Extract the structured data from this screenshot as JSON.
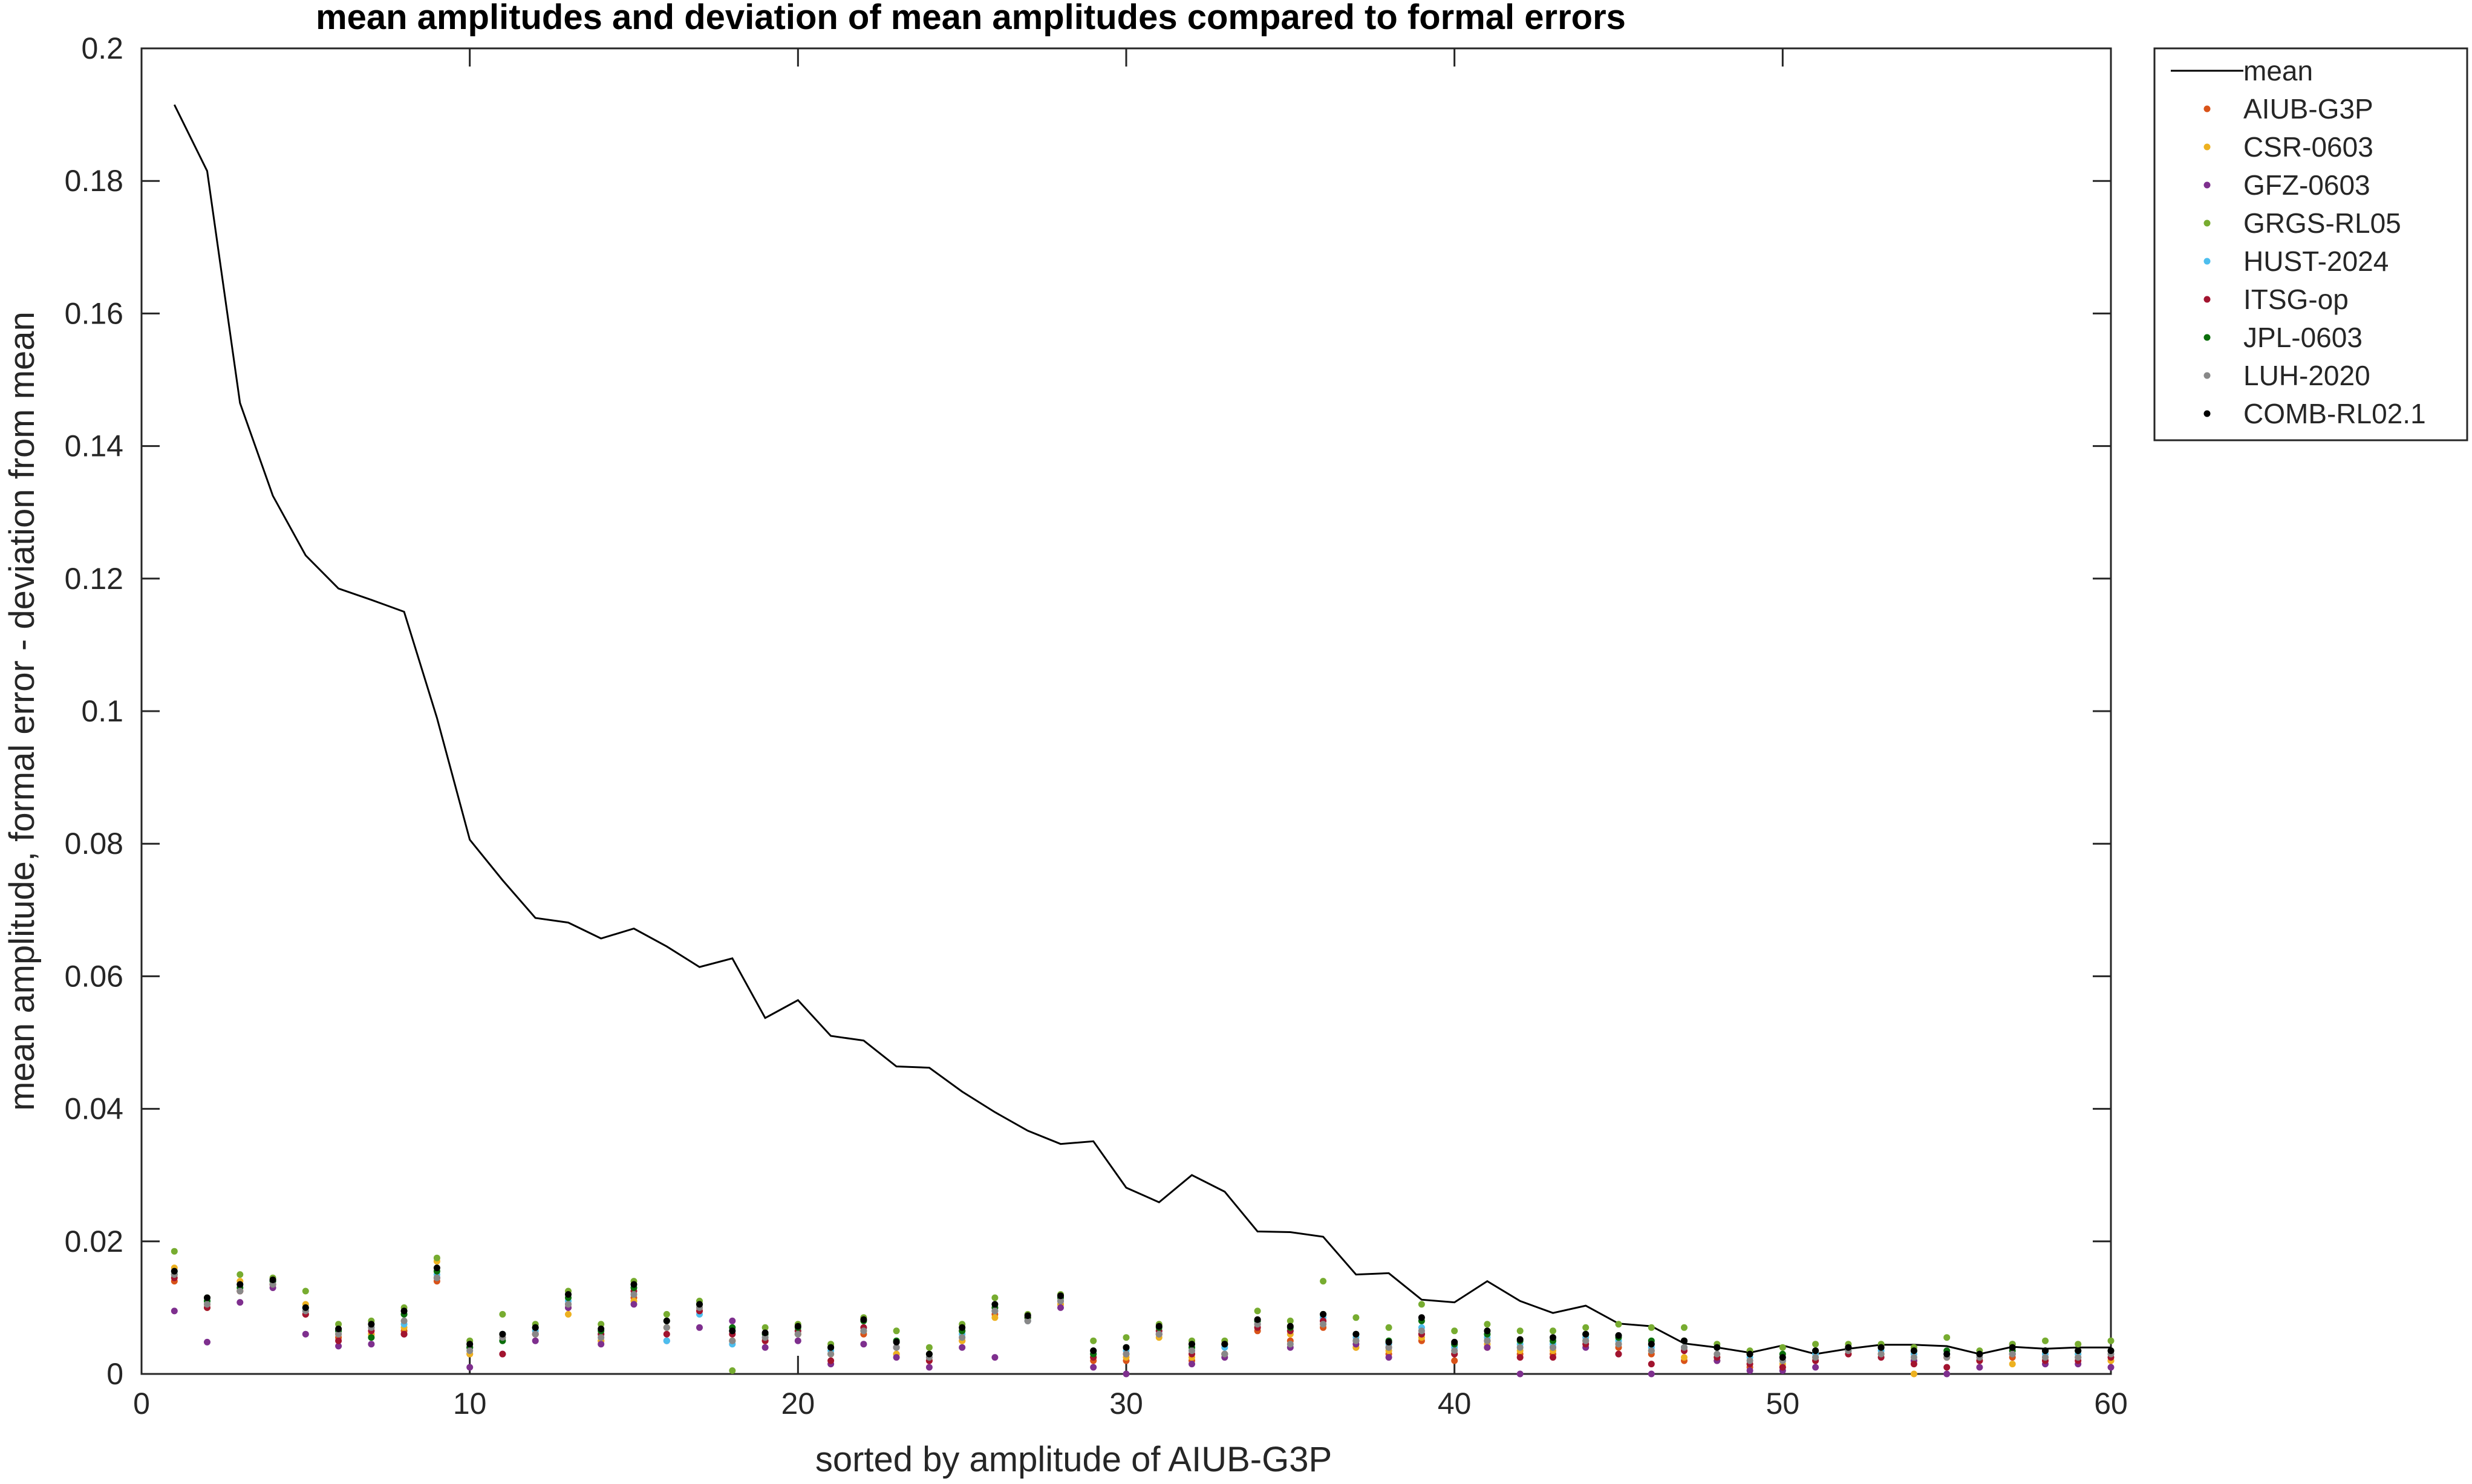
{
  "chart_data": {
    "type": "scatter",
    "title": "mean amplitudes and deviation of mean amplitudes compared to formal errors",
    "xlabel": "sorted by amplitude of AIUB-G3P",
    "ylabel": "mean amplitude, formal error - deviation from mean",
    "xlim": [
      0,
      60
    ],
    "ylim": [
      0,
      0.2
    ],
    "xticks": [
      "0",
      "10",
      "20",
      "30",
      "40",
      "50",
      "60"
    ],
    "yticks": [
      "0",
      "0.02",
      "0.04",
      "0.06",
      "0.08",
      "0.1",
      "0.12",
      "0.14",
      "0.16",
      "0.18",
      "0.2"
    ],
    "grid": false,
    "legend_position": "outside-right-top",
    "x": [
      1,
      2,
      3,
      4,
      5,
      6,
      7,
      8,
      9,
      10,
      11,
      12,
      13,
      14,
      15,
      16,
      17,
      18,
      19,
      20,
      21,
      22,
      23,
      24,
      25,
      26,
      27,
      28,
      29,
      30,
      31,
      32,
      33,
      34,
      35,
      36,
      37,
      38,
      39,
      40,
      41,
      42,
      43,
      44,
      45,
      46,
      47,
      48,
      49,
      50,
      51,
      52,
      53,
      54,
      55,
      56,
      57,
      58,
      59,
      60
    ],
    "mean": {
      "name": "mean",
      "color": "#000000",
      "style": "line",
      "values": [
        0.1915,
        0.1815,
        0.1465,
        0.1325,
        0.1235,
        0.1185,
        0.1168,
        0.115,
        0.099,
        0.0806,
        0.0745,
        0.0688,
        0.0681,
        0.0657,
        0.0672,
        0.0645,
        0.0614,
        0.0627,
        0.0537,
        0.0564,
        0.051,
        0.0503,
        0.0464,
        0.0462,
        0.0426,
        0.0395,
        0.0367,
        0.0347,
        0.0351,
        0.0281,
        0.0259,
        0.03,
        0.0275,
        0.0215,
        0.0214,
        0.0207,
        0.015,
        0.0152,
        0.0112,
        0.0108,
        0.014,
        0.011,
        0.0092,
        0.0103,
        0.0076,
        0.0072,
        0.0046,
        0.004,
        0.0032,
        0.0043,
        0.003,
        0.0038,
        0.0044,
        0.0044,
        0.0042,
        0.003,
        0.0041,
        0.0038,
        0.004,
        0.004
      ]
    },
    "series": [
      {
        "name": "AIUB-G3P",
        "color": "#D95319",
        "style": "dots",
        "values": [
          0.014,
          0.0105,
          0.0125,
          0.0135,
          0.009,
          0.0055,
          0.006,
          0.0065,
          0.014,
          0.003,
          0.0055,
          0.006,
          0.01,
          0.005,
          0.0115,
          0.007,
          0.0095,
          0.005,
          0.005,
          0.006,
          0.003,
          0.006,
          0.003,
          0.002,
          0.005,
          0.009,
          0.0085,
          0.0105,
          0.002,
          0.002,
          0.006,
          0.002,
          0.003,
          0.0065,
          0.005,
          0.007,
          0.004,
          0.003,
          0.005,
          0.002,
          0.004,
          0.003,
          0.003,
          0.005,
          0.004,
          0.003,
          0.002,
          0.002,
          0.001,
          0.001,
          0.002,
          0.003,
          0.003,
          0.002,
          0.0025,
          0.002,
          0.0025,
          0.002,
          0.0025,
          0.002
        ]
      },
      {
        "name": "CSR-0603",
        "color": "#EDB120",
        "style": "dots",
        "values": [
          0.016,
          0.01,
          0.014,
          0.0135,
          0.0105,
          0.006,
          0.006,
          0.007,
          0.017,
          0.003,
          0.006,
          0.0065,
          0.009,
          0.005,
          0.011,
          0.007,
          0.01,
          0.005,
          0.005,
          0.006,
          0.003,
          0.0065,
          0.003,
          0.002,
          0.005,
          0.0085,
          0.008,
          0.0105,
          0.0025,
          0.0025,
          0.0055,
          0.0025,
          0.003,
          0.007,
          0.006,
          0.0075,
          0.004,
          0.0035,
          0.0055,
          0.003,
          0.0045,
          0.0035,
          0.0035,
          0.0055,
          0.0045,
          0.0035,
          0.0025,
          0.0025,
          0.0015,
          0.0015,
          0.0025,
          0.0035,
          0.003,
          0.0,
          0.0025,
          0.002,
          0.0015,
          0.0025,
          0.003,
          0.002
        ]
      },
      {
        "name": "GFZ-0603",
        "color": "#7E2F8E",
        "style": "dots",
        "values": [
          0.0095,
          0.0048,
          0.0108,
          0.013,
          0.006,
          0.0042,
          0.0045,
          0.006,
          0.0145,
          0.001,
          0.003,
          0.005,
          0.01,
          0.0045,
          0.0105,
          0.005,
          0.007,
          0.008,
          0.004,
          0.005,
          0.0015,
          0.0045,
          0.0025,
          0.001,
          0.004,
          0.0025,
          0.008,
          0.01,
          0.001,
          0.0,
          0.006,
          0.0015,
          0.0025,
          0.0075,
          0.004,
          0.008,
          0.0045,
          0.0025,
          0.006,
          0.0045,
          0.004,
          0.0,
          0.004,
          0.004,
          0.003,
          0.0,
          0.004,
          0.002,
          0.0005,
          0.0005,
          0.001,
          0.004,
          0.004,
          0.002,
          0.0,
          0.001,
          0.0045,
          0.0015,
          0.0015,
          0.001
        ]
      },
      {
        "name": "GRGS-RL05",
        "color": "#77AC30",
        "style": "dots",
        "values": [
          0.0185,
          0.0115,
          0.015,
          0.0145,
          0.0125,
          0.0075,
          0.008,
          0.01,
          0.0175,
          0.005,
          0.009,
          0.0075,
          0.0125,
          0.0075,
          0.014,
          0.009,
          0.011,
          0.0005,
          0.007,
          0.0075,
          0.0045,
          0.0085,
          0.0065,
          0.004,
          0.0075,
          0.0115,
          0.009,
          0.012,
          0.005,
          0.0055,
          0.0075,
          0.005,
          0.005,
          0.0095,
          0.008,
          0.014,
          0.0085,
          0.007,
          0.0105,
          0.0065,
          0.0075,
          0.0065,
          0.0065,
          0.007,
          0.0075,
          0.007,
          0.007,
          0.0045,
          0.0035,
          0.004,
          0.0045,
          0.0045,
          0.0045,
          0.004,
          0.0055,
          0.0035,
          0.0045,
          0.005,
          0.0045,
          0.005
        ]
      },
      {
        "name": "HUST-2024",
        "color": "#4DBEEE",
        "style": "dots",
        "values": [
          0.0155,
          0.011,
          0.0135,
          0.014,
          0.0095,
          0.0065,
          0.007,
          0.0075,
          0.015,
          0.004,
          0.006,
          0.0065,
          0.011,
          0.006,
          0.012,
          0.005,
          0.009,
          0.0045,
          0.0055,
          0.0065,
          0.0035,
          0.007,
          0.004,
          0.0025,
          0.006,
          0.0095,
          0.008,
          0.011,
          0.003,
          0.0035,
          0.0065,
          0.0035,
          0.004,
          0.008,
          0.0065,
          0.0085,
          0.0055,
          0.0045,
          0.007,
          0.004,
          0.0055,
          0.0045,
          0.0045,
          0.0055,
          0.005,
          0.004,
          0.004,
          0.004,
          0.0025,
          0.002,
          0.003,
          0.0035,
          0.0035,
          0.003,
          0.003,
          0.003,
          0.003,
          0.003,
          0.003,
          0.003
        ]
      },
      {
        "name": "ITSG-op",
        "color": "#A2142F",
        "style": "dots",
        "values": [
          0.0145,
          0.01,
          0.0125,
          0.0135,
          0.009,
          0.005,
          0.0065,
          0.006,
          0.0145,
          0.004,
          0.003,
          0.006,
          0.0105,
          0.006,
          0.0125,
          0.006,
          0.0095,
          0.006,
          0.005,
          0.0065,
          0.002,
          0.007,
          0.004,
          0.002,
          0.0065,
          0.01,
          0.0085,
          0.011,
          0.0025,
          0.003,
          0.0065,
          0.003,
          0.003,
          0.007,
          0.0065,
          0.008,
          0.005,
          0.004,
          0.006,
          0.003,
          0.005,
          0.0025,
          0.0025,
          0.0045,
          0.003,
          0.0015,
          0.0035,
          0.0025,
          0.0015,
          0.001,
          0.002,
          0.003,
          0.0025,
          0.0015,
          0.001,
          0.002,
          0.003,
          0.002,
          0.002,
          0.0025
        ]
      },
      {
        "name": "JPL-0603",
        "color": "#0B6E0B",
        "style": "dots",
        "values": [
          0.015,
          0.011,
          0.013,
          0.014,
          0.01,
          0.0065,
          0.0055,
          0.009,
          0.0155,
          0.004,
          0.005,
          0.007,
          0.0115,
          0.0065,
          0.013,
          0.008,
          0.0105,
          0.007,
          0.006,
          0.007,
          0.004,
          0.008,
          0.005,
          0.003,
          0.0065,
          0.01,
          0.0085,
          0.0115,
          0.003,
          0.004,
          0.007,
          0.004,
          0.0045,
          0.008,
          0.007,
          0.009,
          0.006,
          0.005,
          0.008,
          0.0045,
          0.006,
          0.005,
          0.005,
          0.006,
          0.0055,
          0.005,
          0.005,
          0.004,
          0.003,
          0.003,
          0.0035,
          0.004,
          0.004,
          0.0035,
          0.0035,
          0.003,
          0.0035,
          0.0035,
          0.0035,
          0.0035
        ]
      },
      {
        "name": "LUH-2020",
        "color": "#888888",
        "style": "dots",
        "values": [
          0.015,
          0.0105,
          0.0125,
          0.0135,
          0.0095,
          0.006,
          0.007,
          0.008,
          0.0145,
          0.0035,
          0.0055,
          0.006,
          0.0105,
          0.0055,
          0.012,
          0.007,
          0.01,
          0.005,
          0.0055,
          0.006,
          0.003,
          0.0065,
          0.004,
          0.0025,
          0.0055,
          0.0095,
          0.008,
          0.011,
          0.0035,
          0.003,
          0.006,
          0.0035,
          0.003,
          0.0075,
          0.0045,
          0.0075,
          0.005,
          0.004,
          0.0065,
          0.0035,
          0.005,
          0.004,
          0.004,
          0.005,
          0.0045,
          0.0035,
          0.004,
          0.003,
          0.002,
          0.002,
          0.0025,
          0.0035,
          0.003,
          0.0025,
          0.0025,
          0.0025,
          0.003,
          0.0025,
          0.0025,
          0.003
        ]
      },
      {
        "name": "COMB-RL02.1",
        "color": "#000000",
        "style": "dots",
        "values": [
          0.0155,
          0.0115,
          0.0135,
          0.0142,
          0.01,
          0.0068,
          0.0075,
          0.0095,
          0.016,
          0.0045,
          0.006,
          0.007,
          0.012,
          0.0068,
          0.0135,
          0.008,
          0.0105,
          0.0065,
          0.0062,
          0.0072,
          0.004,
          0.0082,
          0.0048,
          0.003,
          0.007,
          0.0105,
          0.0088,
          0.0118,
          0.0035,
          0.004,
          0.0072,
          0.0045,
          0.0045,
          0.0082,
          0.0072,
          0.009,
          0.006,
          0.0048,
          0.0085,
          0.0048,
          0.0065,
          0.0052,
          0.0055,
          0.006,
          0.0058,
          0.0045,
          0.005,
          0.004,
          0.003,
          0.0025,
          0.0035,
          0.004,
          0.004,
          0.0035,
          0.003,
          0.003,
          0.004,
          0.0035,
          0.0035,
          0.0035
        ]
      }
    ]
  }
}
